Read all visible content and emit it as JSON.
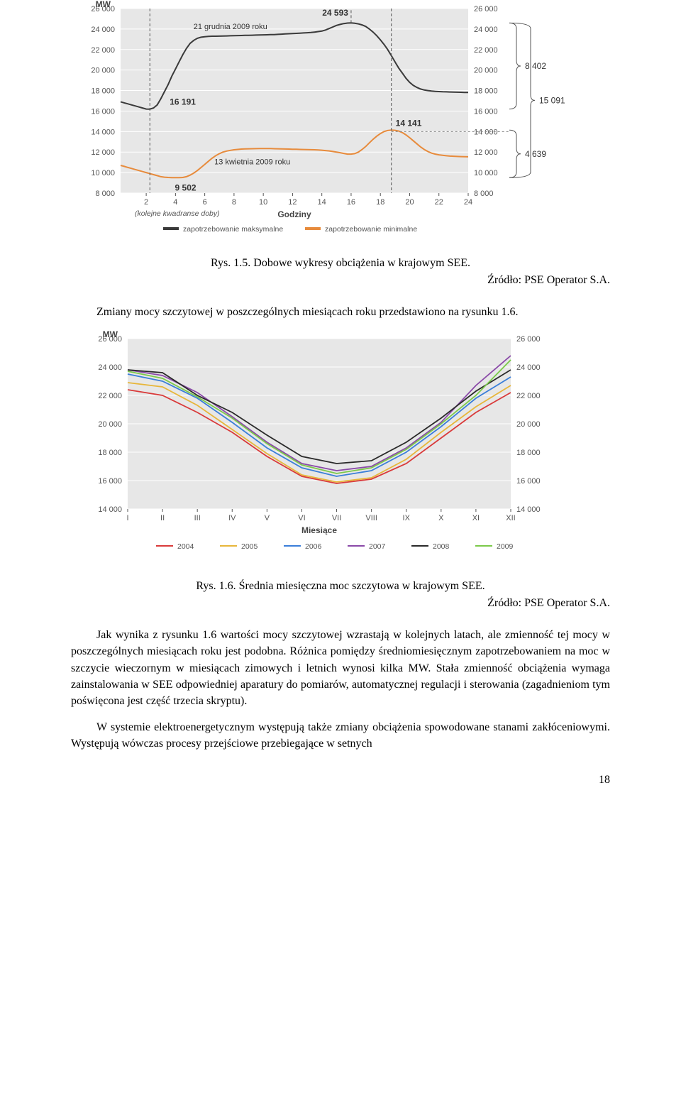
{
  "chart1": {
    "type": "line-dual",
    "yaxis_label": "MW",
    "xaxis_label": "Godziny",
    "xaxis_sublabel": "(kolejne kwadranse doby)",
    "ylim": [
      8000,
      26000
    ],
    "ytick_step": 2000,
    "yticks": [
      "8 000",
      "10 000",
      "12 000",
      "14 000",
      "16 000",
      "18 000",
      "20 000",
      "22 000",
      "24 000",
      "26 000"
    ],
    "xticks": [
      "2",
      "4",
      "6",
      "8",
      "10",
      "12",
      "14",
      "16",
      "18",
      "20",
      "22",
      "24"
    ],
    "background_color": "#e7e7e7",
    "grid_color": "#ffffff",
    "series_max": {
      "label": "zapotrzebowanie maksymalne",
      "color": "#3a3a3a",
      "width": 2,
      "date_label": "21 grudnia 2009 roku",
      "values": [
        16900,
        16800,
        16700,
        16600,
        16500,
        16400,
        16300,
        16200,
        16191,
        16300,
        16600,
        17200,
        17900,
        18600,
        19400,
        20100,
        20800,
        21500,
        22100,
        22600,
        22900,
        23100,
        23200,
        23250,
        23280,
        23300,
        23300,
        23310,
        23320,
        23330,
        23340,
        23350,
        23360,
        23370,
        23380,
        23390,
        23400,
        23410,
        23420,
        23430,
        23440,
        23450,
        23460,
        23480,
        23500,
        23520,
        23540,
        23560,
        23580,
        23600,
        23620,
        23640,
        23660,
        23700,
        23750,
        23800,
        23900,
        24050,
        24200,
        24350,
        24450,
        24530,
        24580,
        24593,
        24560,
        24500,
        24400,
        24250,
        24000,
        23700,
        23350,
        22950,
        22500,
        22000,
        21400,
        20800,
        20200,
        19700,
        19200,
        18800,
        18500,
        18300,
        18150,
        18050,
        18000,
        17950,
        17920,
        17900,
        17880,
        17870,
        17860,
        17850,
        17840,
        17830,
        17820,
        17810
      ]
    },
    "series_min": {
      "label": "zapotrzebowanie minimalne",
      "color": "#e78b3c",
      "width": 2,
      "date_label": "13 kwietnia 2009 roku",
      "values": [
        10700,
        10600,
        10500,
        10400,
        10300,
        10200,
        10100,
        10000,
        9900,
        9800,
        9700,
        9600,
        9550,
        9520,
        9510,
        9505,
        9502,
        9520,
        9600,
        9750,
        9950,
        10200,
        10500,
        10800,
        11100,
        11400,
        11650,
        11850,
        12000,
        12100,
        12170,
        12220,
        12260,
        12290,
        12310,
        12320,
        12330,
        12335,
        12340,
        12345,
        12350,
        12340,
        12330,
        12320,
        12310,
        12300,
        12290,
        12280,
        12270,
        12260,
        12250,
        12240,
        12230,
        12220,
        12200,
        12180,
        12150,
        12110,
        12060,
        12000,
        11940,
        11870,
        11800,
        11800,
        11850,
        12000,
        12250,
        12550,
        12900,
        13250,
        13550,
        13800,
        14000,
        14100,
        14141,
        14120,
        14050,
        13900,
        13680,
        13400,
        13100,
        12800,
        12500,
        12250,
        12050,
        11900,
        11800,
        11730,
        11680,
        11640,
        11610,
        11590,
        11575,
        11560,
        11550,
        11540
      ]
    },
    "left_dashed_at_idx": 8,
    "left_dashed_value": "16 191",
    "min_bottom_value": "9 502",
    "peak_max_value": "24 593",
    "peak_min_value": "14 141",
    "peak_min_dashed_at_idx": 74,
    "right_brackets": [
      {
        "from": 26000,
        "to": 17600,
        "label": "8 402"
      },
      {
        "from": 26000,
        "to": 10909,
        "label": "15 091"
      },
      {
        "from": 14141,
        "to": 9502,
        "label": "4 639"
      }
    ]
  },
  "chart2": {
    "type": "line-multi",
    "yaxis_label": "MW",
    "xaxis_label": "Miesiące",
    "ylim": [
      14000,
      26000
    ],
    "ytick_step": 2000,
    "yticks": [
      "14 000",
      "16 000",
      "18 000",
      "20 000",
      "22 000",
      "24 000",
      "26 000"
    ],
    "xticks": [
      "I",
      "II",
      "III",
      "IV",
      "V",
      "VI",
      "VII",
      "VIII",
      "IX",
      "X",
      "XI",
      "XII"
    ],
    "background_color": "#e7e7e7",
    "grid_color": "#ffffff",
    "series": [
      {
        "name": "2004",
        "color": "#d93a3a",
        "values": [
          22400,
          22000,
          20800,
          19400,
          17700,
          16300,
          15800,
          16100,
          17200,
          19000,
          20800,
          22200
        ]
      },
      {
        "name": "2005",
        "color": "#e7b63a",
        "values": [
          22900,
          22600,
          21300,
          19600,
          17900,
          16400,
          15900,
          16200,
          17500,
          19400,
          21200,
          22700
        ]
      },
      {
        "name": "2006",
        "color": "#3a7ed9",
        "values": [
          23500,
          23000,
          21800,
          20100,
          18300,
          16900,
          16300,
          16700,
          18000,
          19800,
          21800,
          23300
        ]
      },
      {
        "name": "2007",
        "color": "#8a4aa8",
        "values": [
          23800,
          23400,
          22200,
          20500,
          18700,
          17200,
          16700,
          17000,
          18300,
          20100,
          22700,
          24800
        ]
      },
      {
        "name": "2008",
        "color": "#2a2a2a",
        "values": [
          23800,
          23600,
          22000,
          20800,
          19200,
          17700,
          17200,
          17400,
          18700,
          20400,
          22300,
          23800
        ]
      },
      {
        "name": "2009",
        "color": "#7bc94a",
        "values": [
          23700,
          23200,
          21900,
          20400,
          18600,
          17100,
          16500,
          16900,
          18200,
          20000,
          22000,
          24500
        ]
      }
    ]
  },
  "caption1": "Rys. 1.5. Dobowe wykresy obciążenia w krajowym SEE.",
  "source1": "Źródło: PSE Operator S.A.",
  "para1": "Zmiany mocy szczytowej w poszczególnych miesiącach roku przedstawiono na rysunku 1.6.",
  "caption2": "Rys. 1.6. Średnia miesięczna moc szczytowa w krajowym SEE.",
  "source2": "Źródło: PSE Operator S.A.",
  "para2": "Jak wynika z rysunku 1.6 wartości mocy szczytowej wzrastają w kolejnych latach, ale zmienność tej mocy w poszczególnych miesiącach roku jest podobna. Różnica pomiędzy średniomiesięcznym zapotrzebowaniem na moc w szczycie wieczornym w miesiącach zimowych i letnich wynosi kilka MW. Stała zmienność obciążenia wymaga zainstalowania w SEE odpowiedniej aparatury do pomiarów, automatycznej regulacji i sterowania (zagadnieniom tym poświęcona jest część trzecia skryptu).",
  "para3": "W systemie elektroenergetycznym występują także zmiany obciążenia spowodowane stanami zakłóceniowymi. Występują wówczas procesy przejściowe przebiegające w setnych",
  "page_number": "18"
}
